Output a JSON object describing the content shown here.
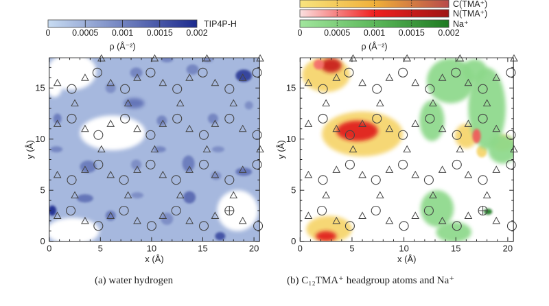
{
  "chart_data": [
    {
      "type": "heatmap",
      "caption": "(a) water hydrogen",
      "xlabel": "x (Å)",
      "ylabel": "y (Å)",
      "xlim": [
        0,
        20.55
      ],
      "ylim": [
        0,
        17.95
      ],
      "xticks": [
        "0",
        "5",
        "10",
        "15",
        "20"
      ],
      "yticks": [
        "0",
        "5",
        "10",
        "15"
      ],
      "colorbars": [
        {
          "name": "TIP4P-H",
          "colors": [
            "#c8dcf2",
            "#1c2a8e"
          ],
          "range": [
            0,
            0.002
          ]
        }
      ],
      "colorbar_ticks": [
        "0",
        "0.0005",
        "0.001",
        "0.0015",
        "0.002"
      ],
      "colorbar_label": "ρ (Å⁻²)",
      "background_rho": 0.0004,
      "density_regions": [
        {
          "x": 2.2,
          "y": 16.6,
          "rx": 2.4,
          "ry": 1.8,
          "rho": 0
        },
        {
          "x": 0.5,
          "y": 15.3,
          "rx": 0.8,
          "ry": 1.2,
          "rho": 0
        },
        {
          "x": 6.2,
          "y": 10.6,
          "rx": 3.2,
          "ry": 1.7,
          "rho": 0
        },
        {
          "x": 2.3,
          "y": 1.0,
          "rx": 2.6,
          "ry": 1.3,
          "rho": 0
        },
        {
          "x": 18.4,
          "y": 3.0,
          "rx": 2.0,
          "ry": 2.0,
          "rho": 0
        },
        {
          "x": 0.3,
          "y": 3.0,
          "rx": 0.4,
          "ry": 0.5,
          "rho": 0.002
        },
        {
          "x": 19.0,
          "y": 16.2,
          "rx": 0.8,
          "ry": 0.6,
          "rho": 0.0018
        },
        {
          "x": 16.7,
          "y": 0.5,
          "rx": 0.5,
          "ry": 0.4,
          "rho": 0.0016
        },
        {
          "x": 8.3,
          "y": 13.5,
          "rx": 1.0,
          "ry": 0.5,
          "rho": 0.0012
        },
        {
          "x": 3.5,
          "y": 4.2,
          "rx": 0.8,
          "ry": 0.4,
          "rho": 0.0012
        },
        {
          "x": 13.7,
          "y": 4.3,
          "rx": 0.6,
          "ry": 0.6,
          "rho": 0.0013
        },
        {
          "x": 3.8,
          "y": 7.3,
          "rx": 0.8,
          "ry": 0.6,
          "rho": 0.0011
        },
        {
          "x": 13.6,
          "y": 7.6,
          "rx": 0.6,
          "ry": 0.8,
          "rho": 0.0011
        },
        {
          "x": 19.0,
          "y": 6.8,
          "rx": 0.8,
          "ry": 0.4,
          "rho": 0.0012
        },
        {
          "x": 0.8,
          "y": 12.0,
          "rx": 0.4,
          "ry": 0.5,
          "rho": 0.0011
        },
        {
          "x": 11.0,
          "y": 11.8,
          "rx": 0.5,
          "ry": 0.5,
          "rho": 0.001
        },
        {
          "x": 16.0,
          "y": 12.0,
          "rx": 0.5,
          "ry": 0.5,
          "rho": 0.001
        },
        {
          "x": 0.7,
          "y": 9.0,
          "rx": 0.6,
          "ry": 0.3,
          "rho": 0.001
        },
        {
          "x": 10.8,
          "y": 9.0,
          "rx": 0.6,
          "ry": 0.3,
          "rho": 0.001
        },
        {
          "x": 16.5,
          "y": 9.0,
          "rx": 0.6,
          "ry": 0.3,
          "rho": 0.0009
        },
        {
          "x": 6.0,
          "y": 15.0,
          "rx": 0.5,
          "ry": 0.5,
          "rho": 0.0009
        },
        {
          "x": 8.5,
          "y": 16.5,
          "rx": 0.6,
          "ry": 0.5,
          "rho": 0.001
        },
        {
          "x": 14.0,
          "y": 16.8,
          "rx": 0.6,
          "ry": 0.5,
          "rho": 0.001
        },
        {
          "x": 6.0,
          "y": 2.5,
          "rx": 0.5,
          "ry": 0.5,
          "rho": 0.0011
        },
        {
          "x": 11.5,
          "y": 2.2,
          "rx": 0.6,
          "ry": 0.6,
          "rho": 0.0009
        },
        {
          "x": 8.6,
          "y": 4.5,
          "rx": 0.6,
          "ry": 0.3,
          "rho": 0.0009
        },
        {
          "x": 8.5,
          "y": 7.5,
          "rx": 0.5,
          "ry": 0.5,
          "rho": 0.0009
        },
        {
          "x": 16.3,
          "y": 6.4,
          "rx": 0.5,
          "ry": 0.4,
          "rho": 0.0009
        },
        {
          "x": 19.5,
          "y": 13.3,
          "rx": 0.4,
          "ry": 0.4,
          "rho": 0.0009
        },
        {
          "x": 11.5,
          "y": 17.8,
          "rx": 0.6,
          "ry": 0.3,
          "rho": 0.001
        },
        {
          "x": 15.5,
          "y": 17.8,
          "rx": 0.5,
          "ry": 0.3,
          "rho": 0.0009
        }
      ]
    },
    {
      "type": "heatmap",
      "caption": "(b) C₁₂TMA⁺ headgroup atoms and Na⁺",
      "xlabel": "x (Å)",
      "ylabel": "y (Å)",
      "xlim": [
        0,
        20.55
      ],
      "ylim": [
        0,
        17.95
      ],
      "xticks": [
        "0",
        "5",
        "10",
        "15",
        "20"
      ],
      "yticks": [
        "0",
        "5",
        "10",
        "15"
      ],
      "colorbars": [
        {
          "name": "C(TMA⁺)",
          "colors": [
            "#f8e47e",
            "#f0b03a",
            "#b84a4a"
          ],
          "range": [
            0,
            0.002
          ]
        },
        {
          "name": "N(TMA⁺)",
          "colors": [
            "#fbe0e0",
            "#f02020",
            "#9e1414"
          ],
          "range": [
            0,
            0.002
          ]
        },
        {
          "name": "Na⁺",
          "colors": [
            "#a2e69e",
            "#5cb85a",
            "#1e7a22"
          ],
          "range": [
            0,
            0.002
          ]
        }
      ],
      "colorbar_ticks": [
        "0",
        "0.0005",
        "0.001",
        "0.0015",
        "0.002"
      ],
      "colorbar_label": "ρ (Å⁻²)",
      "density_regions": [
        {
          "species": "C(TMA⁺)",
          "x": 2.5,
          "y": 16.3,
          "rx": 2.3,
          "ry": 1.7,
          "rho": 0.0003
        },
        {
          "species": "C(TMA⁺)",
          "x": 6.0,
          "y": 10.5,
          "rx": 3.9,
          "ry": 2.2,
          "rho": 0.0003
        },
        {
          "species": "C(TMA⁺)",
          "x": 2.8,
          "y": 1.2,
          "rx": 2.2,
          "ry": 1.3,
          "rho": 0.0003
        },
        {
          "species": "C(TMA⁺)",
          "x": 16.0,
          "y": 10.3,
          "rx": 1.1,
          "ry": 1.2,
          "rho": 0.0003
        },
        {
          "species": "C(TMA⁺)",
          "x": 19.5,
          "y": 9.6,
          "rx": 1.0,
          "ry": 0.8,
          "rho": 0.0003
        },
        {
          "species": "C(TMA⁺)",
          "x": 17.5,
          "y": 8.8,
          "rx": 0.5,
          "ry": 0.6,
          "rho": 0.0003
        },
        {
          "species": "Na⁺",
          "x": 14.5,
          "y": 15.7,
          "rx": 2.3,
          "ry": 2.2,
          "rho": 0.0003
        },
        {
          "species": "Na⁺",
          "x": 12.7,
          "y": 11.8,
          "rx": 1.2,
          "ry": 2.0,
          "rho": 0.0003
        },
        {
          "species": "Na⁺",
          "x": 18.0,
          "y": 13.0,
          "rx": 1.8,
          "ry": 4.0,
          "rho": 0.0003
        },
        {
          "species": "Na⁺",
          "x": 19.5,
          "y": 9.0,
          "rx": 1.4,
          "ry": 1.4,
          "rho": 0.0003
        },
        {
          "species": "Na⁺",
          "x": 16.8,
          "y": 16.7,
          "rx": 1.2,
          "ry": 1.1,
          "rho": 0.0003
        },
        {
          "species": "Na⁺",
          "x": 13.2,
          "y": 3.2,
          "rx": 1.6,
          "ry": 1.8,
          "rho": 0.0003
        },
        {
          "species": "Na⁺",
          "x": 14.8,
          "y": 0.9,
          "rx": 1.7,
          "ry": 1.0,
          "rho": 0.0003
        },
        {
          "species": "Na⁺",
          "x": 18.1,
          "y": 2.9,
          "rx": 0.4,
          "ry": 0.3,
          "rho": 0.002
        },
        {
          "species": "N(TMA⁺)",
          "x": 3.0,
          "y": 17.2,
          "rx": 1.0,
          "ry": 0.7,
          "rho": 0.0015
        },
        {
          "species": "N(TMA⁺)",
          "x": 1.8,
          "y": 17.3,
          "rx": 0.5,
          "ry": 0.5,
          "rho": 0.0006
        },
        {
          "species": "N(TMA⁺)",
          "x": 5.5,
          "y": 10.8,
          "rx": 2.0,
          "ry": 1.0,
          "rho": 0.0012
        },
        {
          "species": "N(TMA⁺)",
          "x": 2.5,
          "y": 0.5,
          "rx": 1.0,
          "ry": 0.5,
          "rho": 0.0012
        },
        {
          "species": "N(TMA⁺)",
          "x": 17.0,
          "y": 10.3,
          "rx": 0.4,
          "ry": 0.7,
          "rho": 0.0007
        }
      ]
    }
  ],
  "markers": {
    "circles": [
      [
        4.7,
        16.5
      ],
      [
        9.9,
        16.5
      ],
      [
        15.0,
        16.5
      ],
      [
        20.3,
        16.5
      ],
      [
        2.2,
        14.9
      ],
      [
        7.4,
        14.9
      ],
      [
        12.5,
        14.9
      ],
      [
        17.6,
        14.9
      ],
      [
        2.2,
        12.0
      ],
      [
        7.4,
        12.0
      ],
      [
        12.5,
        12.0
      ],
      [
        17.6,
        12.0
      ],
      [
        4.8,
        10.4
      ],
      [
        9.9,
        10.4
      ],
      [
        15.1,
        10.4
      ],
      [
        20.3,
        10.4
      ],
      [
        4.8,
        7.5
      ],
      [
        9.9,
        7.5
      ],
      [
        15.1,
        7.5
      ],
      [
        20.3,
        7.5
      ],
      [
        2.2,
        6.0
      ],
      [
        7.3,
        6.0
      ],
      [
        12.4,
        6.0
      ],
      [
        17.6,
        6.0
      ],
      [
        2.1,
        3.0
      ],
      [
        7.3,
        3.0
      ],
      [
        12.4,
        3.0
      ],
      [
        4.8,
        1.5
      ],
      [
        10.0,
        1.5
      ],
      [
        15.1,
        1.5
      ],
      [
        20.4,
        1.5
      ]
    ],
    "crossed_circles": [
      [
        17.6,
        3.0
      ]
    ],
    "triangles": [
      [
        5.1,
        17.9
      ],
      [
        10.3,
        17.9
      ],
      [
        15.4,
        17.9
      ],
      [
        20.6,
        17.9
      ],
      [
        0.8,
        15.5
      ],
      [
        3.5,
        16.0
      ],
      [
        6.0,
        15.5
      ],
      [
        8.6,
        16.0
      ],
      [
        11.1,
        15.5
      ],
      [
        13.7,
        16.0
      ],
      [
        16.2,
        15.5
      ],
      [
        18.9,
        16.0
      ],
      [
        2.5,
        13.5
      ],
      [
        7.7,
        13.5
      ],
      [
        12.8,
        13.5
      ],
      [
        18.0,
        13.5
      ],
      [
        0.8,
        11.5
      ],
      [
        3.5,
        11.0
      ],
      [
        6.0,
        11.5
      ],
      [
        8.6,
        11.0
      ],
      [
        11.1,
        11.5
      ],
      [
        13.7,
        11.0
      ],
      [
        16.2,
        11.5
      ],
      [
        18.9,
        11.0
      ],
      [
        5.1,
        9.0
      ],
      [
        10.3,
        9.0
      ],
      [
        15.4,
        9.0
      ],
      [
        20.6,
        9.0
      ],
      [
        0.8,
        6.5
      ],
      [
        3.5,
        7.0
      ],
      [
        6.0,
        6.5
      ],
      [
        8.6,
        7.0
      ],
      [
        11.1,
        6.5
      ],
      [
        13.7,
        7.0
      ],
      [
        16.2,
        6.5
      ],
      [
        18.9,
        7.0
      ],
      [
        2.5,
        4.5
      ],
      [
        7.7,
        4.5
      ],
      [
        12.8,
        4.5
      ],
      [
        18.0,
        4.5
      ],
      [
        0.8,
        2.5
      ],
      [
        3.5,
        2.0
      ],
      [
        6.0,
        2.5
      ],
      [
        8.6,
        2.0
      ],
      [
        11.1,
        2.5
      ],
      [
        13.7,
        2.0
      ],
      [
        16.2,
        2.5
      ],
      [
        18.9,
        2.0
      ]
    ]
  }
}
